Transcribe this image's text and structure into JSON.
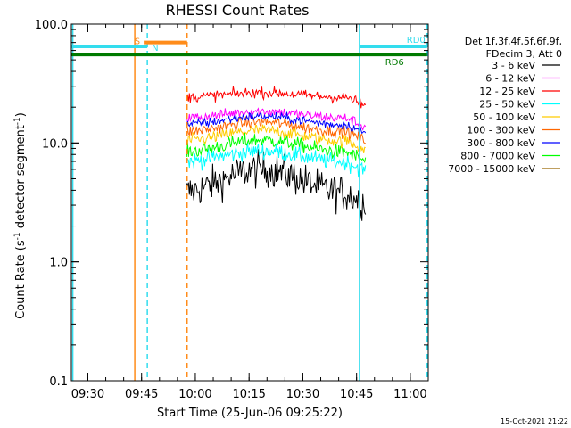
{
  "chart_data": {
    "type": "line",
    "title": "RHESSI Count Rates",
    "xlabel": "Start Time (25-Jun-06 09:25:22)",
    "ylabel_main": "Count Rate (s",
    "ylabel_sup1": "-1",
    "ylabel_mid": " detector segment",
    "ylabel_sup2": "-1",
    "ylabel_end": ")",
    "y_scale": "log",
    "ylim": [
      0.1,
      100.0
    ],
    "y_ticks": [
      {
        "value": 100.0,
        "label": "100.0"
      },
      {
        "value": 10.0,
        "label": "10.0"
      },
      {
        "value": 1.0,
        "label": "1.0"
      },
      {
        "value": 0.1,
        "label": "0.1"
      }
    ],
    "xlim_min": [
      565.4,
      665.0
    ],
    "x_ticks": [
      {
        "min": 570,
        "label": "09:30"
      },
      {
        "min": 585,
        "label": "09:45"
      },
      {
        "min": 600,
        "label": "10:00"
      },
      {
        "min": 615,
        "label": "10:15"
      },
      {
        "min": 630,
        "label": "10:30"
      },
      {
        "min": 645,
        "label": "10:45"
      },
      {
        "min": 660,
        "label": "11:00"
      }
    ],
    "x_minor_step_min": 5,
    "data_start_min": 597.6,
    "data_end_min": 647.5,
    "legend": {
      "header1": "Det 1f,3f,4f,5f,6f,9f,",
      "header2": "FDecim 3, Att 0",
      "position": "right"
    },
    "series": [
      {
        "name": "3 - 6 keV",
        "color": "#000000",
        "base": 3.6,
        "peak": 6.0,
        "jitter": 0.34
      },
      {
        "name": "6 - 12 keV",
        "color": "#ff00ff",
        "base": 16.0,
        "peak": 18.5,
        "jitter": 0.1
      },
      {
        "name": "12 - 25 keV",
        "color": "#ff0000",
        "base": 24.0,
        "peak": 26.5,
        "jitter": 0.1
      },
      {
        "name": "25 - 50 keV",
        "color": "#00ffff",
        "base": 6.8,
        "peak": 8.6,
        "jitter": 0.16
      },
      {
        "name": "50 - 100 keV",
        "color": "#ffcc00",
        "base": 10.2,
        "peak": 12.8,
        "jitter": 0.12
      },
      {
        "name": "100 - 300 keV",
        "color": "#ff6600",
        "base": 12.2,
        "peak": 15.0,
        "jitter": 0.11
      },
      {
        "name": "300 - 800 keV",
        "color": "#0000ff",
        "base": 14.0,
        "peak": 16.8,
        "jitter": 0.09
      },
      {
        "name": "800 - 7000 keV",
        "color": "#00ff00",
        "base": 8.2,
        "peak": 10.6,
        "jitter": 0.14
      },
      {
        "name": "7000 - 15000 keV",
        "color": "#996600",
        "base": 0,
        "peak": 0,
        "jitter": 0
      }
    ],
    "state_bars": [
      {
        "label": "S",
        "color": "#ff8c1a",
        "start_min": 585.6,
        "end_min": 597.7,
        "level": 70.0,
        "label_at": "left"
      },
      {
        "label": "N",
        "color": "#33ddee",
        "start_min": 565.4,
        "end_min": 586.6,
        "level": 65.0,
        "label_at": "right"
      },
      {
        "label": "RD0",
        "color": "#33ddee",
        "start_min": 645.8,
        "end_min": 664.7,
        "level": 65.0,
        "label_at": "above-right"
      },
      {
        "label": "RD6",
        "color": "#007a00",
        "start_min": 565.4,
        "end_min": 664.7,
        "level": 55.5,
        "label_at": "below-right"
      }
    ],
    "vertical_markers": [
      {
        "min": 565.8,
        "color": "#33ddee",
        "style": "solid"
      },
      {
        "min": 583.1,
        "color": "#ff8c1a",
        "style": "solid"
      },
      {
        "min": 586.6,
        "color": "#33ddee",
        "style": "dashed"
      },
      {
        "min": 597.7,
        "color": "#ff8c1a",
        "style": "dashed"
      },
      {
        "min": 645.8,
        "color": "#33ddee",
        "style": "solid"
      },
      {
        "min": 664.7,
        "color": "#33ddee",
        "style": "dashed"
      }
    ],
    "grid": false,
    "timestamp": "15-Oct-2021 21:22"
  }
}
